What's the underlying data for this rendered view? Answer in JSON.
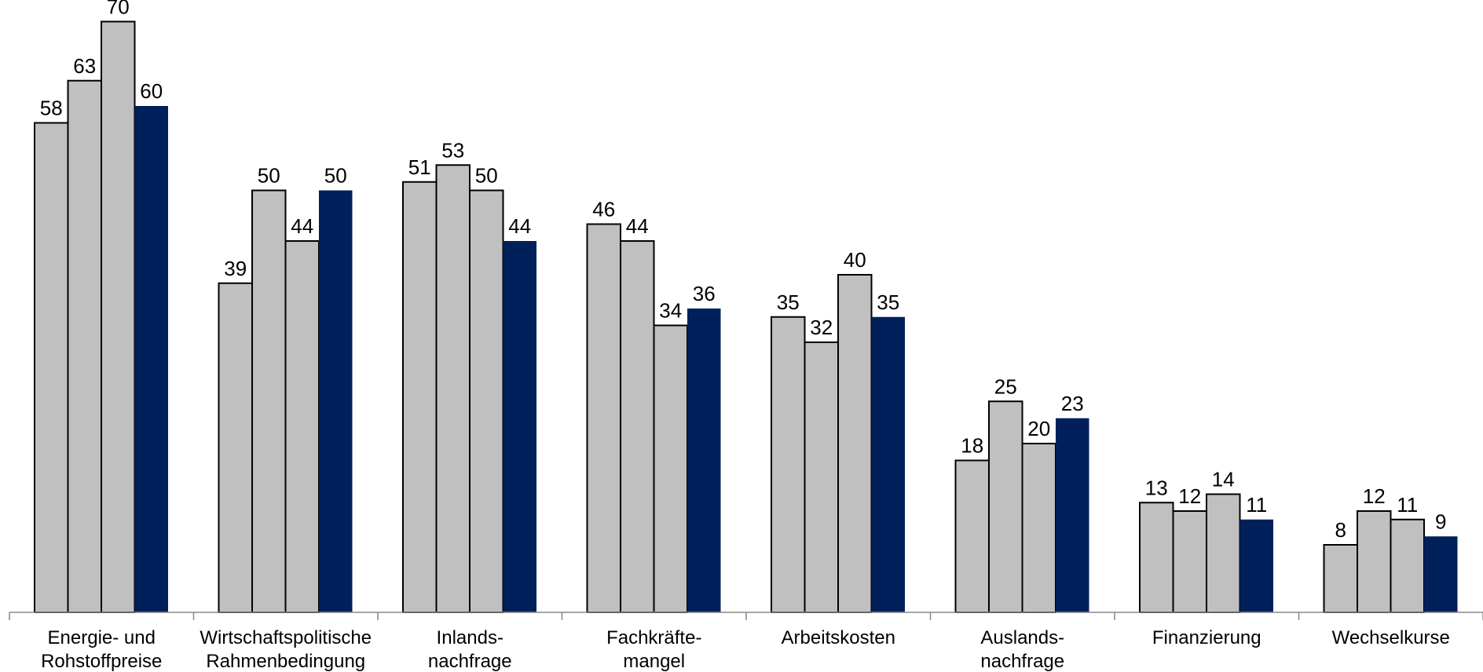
{
  "chart_data": {
    "type": "bar",
    "categories": [
      [
        "Energie- und",
        "Rohstoffpreise"
      ],
      [
        "Wirtschaftspolitische",
        "Rahmenbedingung"
      ],
      [
        "Inlands-",
        "nachfrage"
      ],
      [
        "Fachkräfte-",
        "mangel"
      ],
      [
        "Arbeitskosten"
      ],
      [
        "Auslands-",
        "nachfrage"
      ],
      [
        "Finanzierung"
      ],
      [
        "Wechselkurse"
      ]
    ],
    "series": [
      {
        "values": [
          58,
          39,
          51,
          46,
          35,
          18,
          13,
          8
        ],
        "color": "#c0c0c0"
      },
      {
        "values": [
          63,
          50,
          53,
          44,
          32,
          25,
          12,
          12
        ],
        "color": "#c0c0c0"
      },
      {
        "values": [
          70,
          44,
          50,
          34,
          40,
          20,
          14,
          11
        ],
        "color": "#c0c0c0"
      },
      {
        "values": [
          60,
          50,
          44,
          36,
          35,
          23,
          11,
          9
        ],
        "color": "#00205b"
      }
    ],
    "ylim": [
      0,
      75
    ],
    "grid": false,
    "legend": "none",
    "title": "",
    "xlabel": "",
    "ylabel": ""
  }
}
